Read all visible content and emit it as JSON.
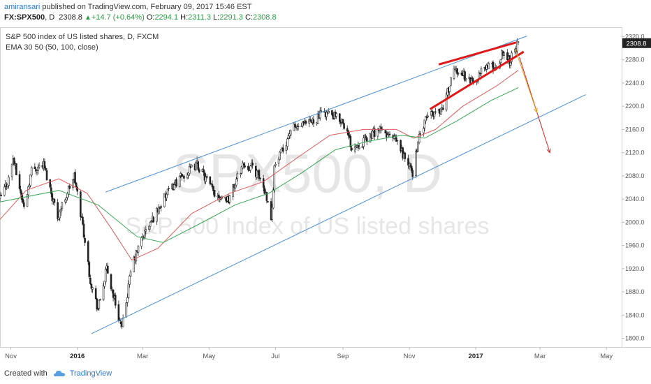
{
  "header": {
    "user": "amiransari",
    "published": "published on TradingView.com, February 09, 2017 15:46 EST"
  },
  "ticker": {
    "symbol": "FX:SPX500",
    "interval": ", D",
    "last": "2308.8",
    "change": "+14.7 (+0.64%)",
    "o_label": "O:",
    "o": "2294.1",
    "h_label": "H:",
    "h": "2311.3",
    "l_label": "L:",
    "l": "2291.3",
    "c_label": "C:",
    "c": "2308.8"
  },
  "footer": {
    "created": "Created with",
    "brand": "TradingView"
  },
  "colors": {
    "candle": "#222222",
    "ema_fast": "#e05a5a",
    "ema_slow": "#3aa655",
    "channel": "#4a8fd6",
    "wedge": "#e01818",
    "arrow_red": "#e02020",
    "arrow_orange": "#e0a020",
    "watermark": "#e6e6e6",
    "price_tag": "#222222",
    "brand": "#2a7ad1",
    "up": "#2b9a44"
  },
  "chart_data": {
    "type": "candlestick",
    "title": "S&P 500 index of US listed shares, D, FXCM",
    "indicator": "EMA 30 50 (50, 100, close)",
    "watermark_symbol": "SPX500, D",
    "watermark_desc": "S&P 500 Index of US listed shares",
    "ylim": [
      1785,
      2335
    ],
    "y_ticks": [
      1800,
      1840,
      1880,
      1920,
      1960,
      2000,
      2040,
      2080,
      2120,
      2160,
      2200,
      2240,
      2280,
      2320
    ],
    "y_tick_labels": [
      "1800.0",
      "1840.0",
      "1880.0",
      "1920.0",
      "1960.0",
      "2000.0",
      "2040.0",
      "2080.0",
      "2120.0",
      "2160.0",
      "2200.0",
      "2240.0",
      "2280.0",
      "2320.0"
    ],
    "x_range": [
      "2015-10-22",
      "2017-05-15"
    ],
    "x_ticks": [
      {
        "date": "2015-11-01",
        "label": "Nov"
      },
      {
        "date": "2016-01-01",
        "label": "2016"
      },
      {
        "date": "2016-03-01",
        "label": "Mar"
      },
      {
        "date": "2016-05-01",
        "label": "May"
      },
      {
        "date": "2016-07-01",
        "label": "Jul"
      },
      {
        "date": "2016-09-01",
        "label": "Sep"
      },
      {
        "date": "2016-11-01",
        "label": "Nov"
      },
      {
        "date": "2017-01-01",
        "label": "2017"
      },
      {
        "date": "2017-03-01",
        "label": "Mar"
      },
      {
        "date": "2017-05-01",
        "label": "May"
      }
    ],
    "last_price": "2308.8",
    "price_path": [
      [
        "2015-10-22",
        2040
      ],
      [
        "2015-10-30",
        2075
      ],
      [
        "2015-11-03",
        2110
      ],
      [
        "2015-11-13",
        2025
      ],
      [
        "2015-11-20",
        2090
      ],
      [
        "2015-12-01",
        2100
      ],
      [
        "2015-12-14",
        2010
      ],
      [
        "2015-12-29",
        2080
      ],
      [
        "2016-01-06",
        1995
      ],
      [
        "2016-01-13",
        1900
      ],
      [
        "2016-01-20",
        1850
      ],
      [
        "2016-01-28",
        1920
      ],
      [
        "2016-02-11",
        1815
      ],
      [
        "2016-02-20",
        1925
      ],
      [
        "2016-03-01",
        1975
      ],
      [
        "2016-03-10",
        2005
      ],
      [
        "2016-03-22",
        2045
      ],
      [
        "2016-04-01",
        2070
      ],
      [
        "2016-04-20",
        2100
      ],
      [
        "2016-05-06",
        2050
      ],
      [
        "2016-05-19",
        2040
      ],
      [
        "2016-06-01",
        2100
      ],
      [
        "2016-06-10",
        2095
      ],
      [
        "2016-06-17",
        2075
      ],
      [
        "2016-06-24",
        2040
      ],
      [
        "2016-06-27",
        2000
      ],
      [
        "2016-06-30",
        2095
      ],
      [
        "2016-07-08",
        2125
      ],
      [
        "2016-07-15",
        2160
      ],
      [
        "2016-08-01",
        2170
      ],
      [
        "2016-08-15",
        2190
      ],
      [
        "2016-09-01",
        2175
      ],
      [
        "2016-09-09",
        2130
      ],
      [
        "2016-09-20",
        2140
      ],
      [
        "2016-10-03",
        2160
      ],
      [
        "2016-10-20",
        2140
      ],
      [
        "2016-11-04",
        2085
      ],
      [
        "2016-11-09",
        2140
      ],
      [
        "2016-11-18",
        2185
      ],
      [
        "2016-12-01",
        2195
      ],
      [
        "2016-12-13",
        2265
      ],
      [
        "2016-12-30",
        2240
      ],
      [
        "2017-01-10",
        2270
      ],
      [
        "2017-01-20",
        2265
      ],
      [
        "2017-01-26",
        2295
      ],
      [
        "2017-02-01",
        2280
      ],
      [
        "2017-02-09",
        2308.8
      ]
    ],
    "ema_fast": [
      [
        "2015-10-22",
        2005
      ],
      [
        "2015-11-15",
        2055
      ],
      [
        "2015-12-15",
        2075
      ],
      [
        "2016-01-10",
        2050
      ],
      [
        "2016-02-01",
        1990
      ],
      [
        "2016-02-20",
        1935
      ],
      [
        "2016-03-15",
        1955
      ],
      [
        "2016-04-15",
        2015
      ],
      [
        "2016-05-20",
        2050
      ],
      [
        "2016-06-20",
        2070
      ],
      [
        "2016-07-20",
        2110
      ],
      [
        "2016-08-20",
        2150
      ],
      [
        "2016-09-20",
        2160
      ],
      [
        "2016-10-20",
        2160
      ],
      [
        "2016-11-05",
        2145
      ],
      [
        "2016-11-25",
        2160
      ],
      [
        "2016-12-20",
        2200
      ],
      [
        "2017-01-20",
        2235
      ],
      [
        "2017-02-09",
        2262
      ]
    ],
    "ema_slow": [
      [
        "2015-10-22",
        2035
      ],
      [
        "2015-12-15",
        2055
      ],
      [
        "2016-01-20",
        2030
      ],
      [
        "2016-02-25",
        1975
      ],
      [
        "2016-03-20",
        1965
      ],
      [
        "2016-04-20",
        1995
      ],
      [
        "2016-05-25",
        2030
      ],
      [
        "2016-06-25",
        2050
      ],
      [
        "2016-07-25",
        2085
      ],
      [
        "2016-08-25",
        2125
      ],
      [
        "2016-09-25",
        2140
      ],
      [
        "2016-10-25",
        2150
      ],
      [
        "2016-11-15",
        2145
      ],
      [
        "2016-12-15",
        2175
      ],
      [
        "2017-01-15",
        2210
      ],
      [
        "2017-02-09",
        2232
      ]
    ],
    "annotations": {
      "channel_upper": [
        [
          "2016-01-27",
          2052
        ],
        [
          "2017-02-17",
          2321
        ]
      ],
      "channel_lower": [
        [
          "2016-01-14",
          1808
        ],
        [
          "2017-04-12",
          2220
        ]
      ],
      "wedge_upper": [
        [
          "2016-11-28",
          2272
        ],
        [
          "2017-02-07",
          2310
        ]
      ],
      "wedge_lower": [
        [
          "2016-11-20",
          2195
        ],
        [
          "2017-02-14",
          2294
        ]
      ],
      "arrow_red": [
        [
          "2017-02-10",
          2285
        ],
        [
          "2017-03-10",
          2120
        ]
      ],
      "arrow_orange": [
        [
          "2017-02-06",
          2300
        ],
        [
          "2017-02-26",
          2190
        ]
      ]
    }
  }
}
